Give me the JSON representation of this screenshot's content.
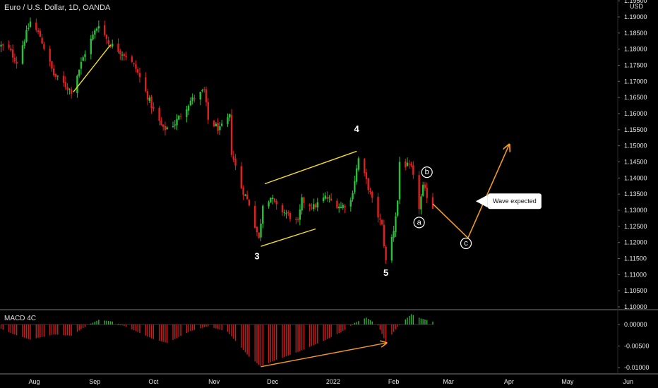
{
  "header": {
    "symbol_title": "Euro / U.S. Dollar, 1D, OANDA"
  },
  "macd": {
    "title": "MACD 4C"
  },
  "colors": {
    "background": "#000000",
    "up": "#26c33a",
    "down": "#e02020",
    "macd_pos": "#2fae3a",
    "macd_neg": "#c81d1d",
    "channel_line": "#f3dd2a",
    "projection": "#f39a1e",
    "axis_text": "#e6e6e6",
    "separator": "#7a7a7a"
  },
  "chart_data": [
    {
      "type": "candlestick",
      "title": "Euro / U.S. Dollar, 1D, OANDA",
      "currency_label": "USD",
      "ylim": [
        1.1,
        1.1951
      ],
      "y_ticks": [
        "1.19500",
        "1.19000",
        "1.18500",
        "1.18000",
        "1.17500",
        "1.17000",
        "1.16500",
        "1.16000",
        "1.15500",
        "1.15000",
        "1.14500",
        "1.14000",
        "1.13500",
        "1.13000",
        "1.12500",
        "1.12000",
        "1.11500",
        "1.11000",
        "1.10500",
        "1.10000"
      ],
      "x_ticks": [
        "Aug",
        "Sep",
        "Oct",
        "Nov",
        "Dec",
        "2022",
        "Feb",
        "Mar",
        "Apr",
        "May",
        "Jun"
      ],
      "price_anchors": [
        [
          "2021-07-15",
          1.181
        ],
        [
          "2021-07-19",
          1.18
        ],
        [
          "2021-07-23",
          1.176
        ],
        [
          "2021-07-30",
          1.1885
        ],
        [
          "2021-08-04",
          1.184
        ],
        [
          "2021-08-11",
          1.172
        ],
        [
          "2021-08-20",
          1.167
        ],
        [
          "2021-08-27",
          1.179
        ],
        [
          "2021-09-03",
          1.188
        ],
        [
          "2021-09-08",
          1.182
        ],
        [
          "2021-09-17",
          1.178
        ],
        [
          "2021-09-22",
          1.174
        ],
        [
          "2021-10-01",
          1.161
        ],
        [
          "2021-10-06",
          1.155
        ],
        [
          "2021-10-12",
          1.157
        ],
        [
          "2021-10-20",
          1.164
        ],
        [
          "2021-10-27",
          1.167
        ],
        [
          "2021-10-29",
          1.158
        ],
        [
          "2021-11-04",
          1.155
        ],
        [
          "2021-11-09",
          1.159
        ],
        [
          "2021-11-10",
          1.148
        ],
        [
          "2021-11-15",
          1.137
        ],
        [
          "2021-11-19",
          1.132
        ],
        [
          "2021-11-24",
          1.121
        ],
        [
          "2021-11-26",
          1.132
        ],
        [
          "2021-11-30",
          1.134
        ],
        [
          "2021-12-03",
          1.131
        ],
        [
          "2021-12-08",
          1.129
        ],
        [
          "2021-12-14",
          1.126
        ],
        [
          "2021-12-16",
          1.133
        ],
        [
          "2021-12-22",
          1.131
        ],
        [
          "2021-12-28",
          1.134
        ],
        [
          "2022-01-05",
          1.131
        ],
        [
          "2022-01-10",
          1.133
        ],
        [
          "2022-01-14",
          1.146
        ],
        [
          "2022-01-18",
          1.139
        ],
        [
          "2022-01-21",
          1.133
        ],
        [
          "2022-01-26",
          1.125
        ],
        [
          "2022-01-28",
          1.114
        ],
        [
          "2022-02-01",
          1.124
        ],
        [
          "2022-02-03",
          1.133
        ],
        [
          "2022-02-04",
          1.145
        ],
        [
          "2022-02-10",
          1.143
        ],
        [
          "2022-02-14",
          1.131
        ],
        [
          "2022-02-16",
          1.137
        ],
        [
          "2022-02-21",
          1.131
        ]
      ],
      "projection_path": [
        [
          "2022-02-21",
          1.132
        ],
        [
          "2022-03-11",
          1.1214
        ],
        [
          "2022-04-01",
          1.1502
        ]
      ],
      "channel_lines": [
        [
          [
            "2021-11-27",
            1.1382
          ],
          [
            "2022-01-13",
            1.1483
          ]
        ],
        [
          [
            "2021-11-25",
            1.1188
          ],
          [
            "2021-12-23",
            1.1242
          ]
        ],
        [
          [
            "2021-08-21",
            1.1667
          ],
          [
            "2021-09-09",
            1.1813
          ]
        ]
      ],
      "wave_labels": [
        {
          "text": "3",
          "x": "2021-11-23",
          "y": 1.1158
        },
        {
          "text": "4",
          "x": "2022-01-13",
          "y": 1.1553
        },
        {
          "text": "5",
          "x": "2022-01-28",
          "y": 1.1106
        }
      ],
      "circled_labels": [
        {
          "text": "a",
          "x": "2022-02-14",
          "y": 1.1262
        },
        {
          "text": "b",
          "x": "2022-02-18",
          "y": 1.1418
        },
        {
          "text": "c",
          "x": "2022-03-10",
          "y": 1.1197
        }
      ],
      "annotation": {
        "text": "Wave expected",
        "x": "2022-03-15",
        "y": 1.1328
      }
    },
    {
      "type": "bar",
      "title": "MACD 4C",
      "ylim": [
        -0.0115,
        0.0031
      ],
      "y_ticks": [
        "0.00000",
        "-0.00500",
        "-0.01000"
      ],
      "histogram_anchors": [
        [
          "2021-07-15",
          -0.001
        ],
        [
          "2021-07-23",
          -0.0025
        ],
        [
          "2021-07-30",
          -0.0035
        ],
        [
          "2021-08-11",
          -0.0023
        ],
        [
          "2021-08-20",
          -0.0026
        ],
        [
          "2021-08-27",
          -0.0005
        ],
        [
          "2021-09-03",
          0.0011
        ],
        [
          "2021-09-10",
          0.0007
        ],
        [
          "2021-09-17",
          -0.0005
        ],
        [
          "2021-10-01",
          -0.0034
        ],
        [
          "2021-10-08",
          -0.0043
        ],
        [
          "2021-10-20",
          -0.0015
        ],
        [
          "2021-10-29",
          -0.0004
        ],
        [
          "2021-11-08",
          -0.0017
        ],
        [
          "2021-11-19",
          -0.0075
        ],
        [
          "2021-11-25",
          -0.0097
        ],
        [
          "2021-12-03",
          -0.0082
        ],
        [
          "2021-12-15",
          -0.0062
        ],
        [
          "2021-12-28",
          -0.0036
        ],
        [
          "2022-01-05",
          -0.0018
        ],
        [
          "2022-01-10",
          -0.0003
        ],
        [
          "2022-01-12",
          0.0004
        ],
        [
          "2022-01-18",
          0.0016
        ],
        [
          "2022-01-21",
          0.0007
        ],
        [
          "2022-01-24",
          -0.0002
        ],
        [
          "2022-01-28",
          -0.0042
        ],
        [
          "2022-02-03",
          -0.0005
        ],
        [
          "2022-02-07",
          0.0012
        ],
        [
          "2022-02-10",
          0.0024
        ],
        [
          "2022-02-15",
          0.0014
        ],
        [
          "2022-02-21",
          0.0007
        ]
      ],
      "trendline": [
        [
          "2021-11-25",
          -0.0098
        ],
        [
          "2022-01-28",
          -0.0043
        ]
      ]
    }
  ]
}
